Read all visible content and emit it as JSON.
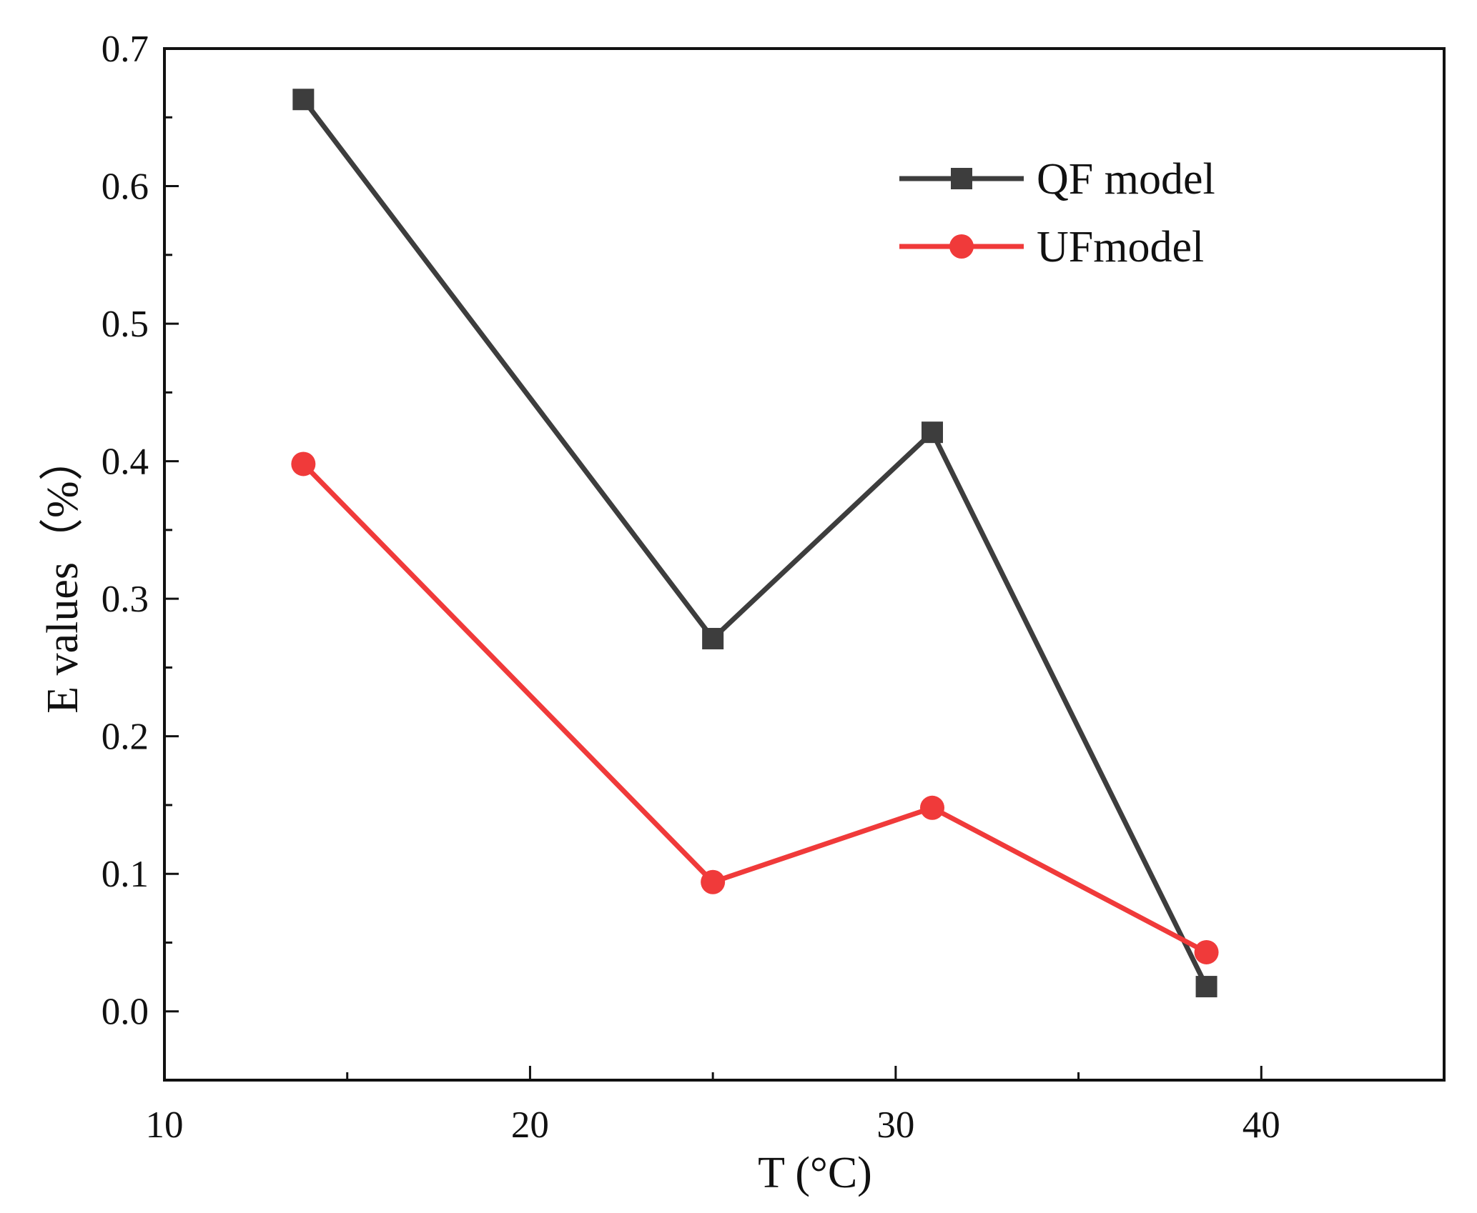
{
  "chart_data": {
    "type": "line",
    "title": "",
    "xlabel": "T (°C)",
    "ylabel": "E values（%）",
    "xlim": [
      10,
      45
    ],
    "ylim": [
      -0.05,
      0.7
    ],
    "xticks": [
      10,
      20,
      30,
      40
    ],
    "xtick_labels": [
      "10",
      "20",
      "30",
      "40"
    ],
    "yticks": [
      0.0,
      0.1,
      0.2,
      0.3,
      0.4,
      0.5,
      0.6,
      0.7
    ],
    "ytick_labels": [
      "0.0",
      "0.1",
      "0.2",
      "0.3",
      "0.4",
      "0.5",
      "0.6",
      "0.7"
    ],
    "grid": false,
    "legend_position": "top-right",
    "x": [
      13.8,
      25.0,
      31.0,
      38.5
    ],
    "series": [
      {
        "name": "QF model",
        "color": "#3d3d3d",
        "marker": "square",
        "values": [
          0.663,
          0.271,
          0.421,
          0.018
        ]
      },
      {
        "name": "UFmodel",
        "color": "#f03a3a",
        "marker": "circle",
        "values": [
          0.398,
          0.094,
          0.148,
          0.043
        ]
      }
    ]
  }
}
